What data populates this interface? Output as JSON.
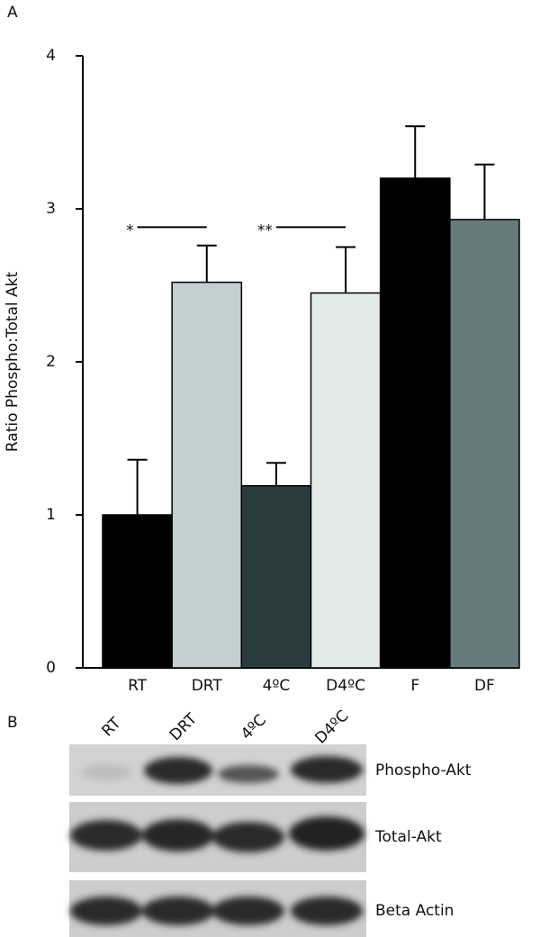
{
  "panel_a_label": "A",
  "chart_data": {
    "type": "bar",
    "ylabel": "Ratio Phospho:Total Akt",
    "categories": [
      "RT",
      "DRT",
      "4ºC",
      "D4ºC",
      "F",
      "DF"
    ],
    "values": [
      1.0,
      2.52,
      1.19,
      2.45,
      3.2,
      2.93
    ],
    "errors": [
      0.36,
      0.24,
      0.15,
      0.3,
      0.34,
      0.36
    ],
    "colors": [
      "#000000",
      "#c4cfcf",
      "#2a3c40",
      "#e3ebe8",
      "#000000",
      "#667b7c"
    ],
    "ylim": [
      0,
      4
    ],
    "yticks": [
      0,
      1,
      2,
      3,
      4
    ],
    "annotations": [
      {
        "text": "*",
        "from": 0,
        "to": 1,
        "y": 2.88
      },
      {
        "text": "**",
        "from": 2,
        "to": 3,
        "y": 2.88
      }
    ]
  },
  "blot": {
    "panel_label": "B",
    "lanes": [
      "RT",
      "DRT",
      "4ºC",
      "D4ºC"
    ],
    "rows": [
      "Phospho-Akt",
      "Total-Akt",
      "Beta Actin"
    ]
  }
}
